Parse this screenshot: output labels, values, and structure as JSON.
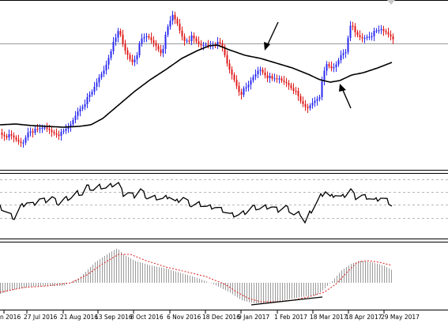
{
  "x_axis": {
    "labels": [
      {
        "text": "n 2016"
      },
      {
        "text": "27 Jul 2016"
      },
      {
        "text": "21 Aug 2016"
      },
      {
        "text": "13 Sep 2016"
      },
      {
        "text": "8 Oct 2016"
      },
      {
        "text": "6 Nov 2016"
      },
      {
        "text": "18 Dec 2016"
      },
      {
        "text": "9 Jan 2017"
      },
      {
        "text": "1 Feb 2017"
      },
      {
        "text": "18 Mar 2017"
      },
      {
        "text": "18 Apr 2017"
      },
      {
        "text": "29 May 2017"
      }
    ]
  },
  "colors": {
    "bull": "#2a2af0",
    "bear": "#e01818",
    "ma": "#000000",
    "signal": "#e02020",
    "hist": "#9a9a9a",
    "grid": "#b8b8b8",
    "sep": "#000000",
    "arrow": "#000000"
  },
  "annotations": {
    "arrows": [
      "arrow-down-ma-cross",
      "arrow-up-ma-bottom"
    ],
    "divergence_line": "divergence-trendline"
  }
}
